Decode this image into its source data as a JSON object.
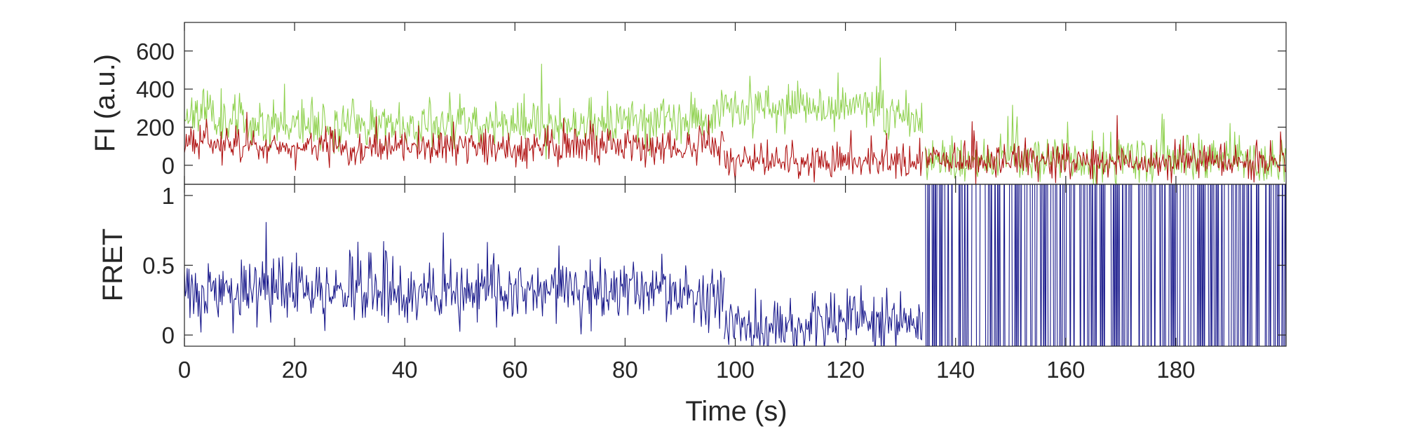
{
  "chart_data": [
    {
      "type": "line",
      "title": "",
      "xlabel": "",
      "ylabel": "FI (a.u.)",
      "xlim": [
        0,
        200
      ],
      "ylim": [
        -100,
        750
      ],
      "grid": false,
      "x_ticks": [
        0,
        20,
        40,
        60,
        80,
        100,
        120,
        140,
        160,
        180
      ],
      "y_ticks": [
        0,
        200,
        400,
        600
      ],
      "y_tick_labels": [
        "0",
        "200",
        "400",
        "600"
      ],
      "series": [
        {
          "color": "#8fd14f",
          "noise": 62,
          "segments": [
            {
              "x": [
                0,
                2,
                10,
                20,
                30,
                40,
                50,
                60,
                70,
                80,
                90,
                95,
                100,
                105,
                110,
                115,
                120,
                125,
                130,
                134
              ],
              "y": [
                260,
                300,
                230,
                220,
                215,
                215,
                230,
                215,
                220,
                225,
                240,
                260,
                300,
                330,
                300,
                290,
                320,
                300,
                260,
                240
              ]
            },
            {
              "x": [
                134.5,
                140,
                150,
                160,
                170,
                180,
                190,
                200
              ],
              "y": [
                20,
                30,
                30,
                25,
                20,
                25,
                20,
                15
              ]
            }
          ]
        },
        {
          "color": "#b01313",
          "noise": 45,
          "segments": [
            {
              "x": [
                0,
                10,
                20,
                40,
                60,
                80,
                90,
                98
              ],
              "y": [
                120,
                110,
                95,
                95,
                90,
                95,
                100,
                95
              ]
            },
            {
              "x": [
                98,
                105,
                110,
                120,
                130,
                134
              ],
              "y": [
                20,
                10,
                25,
                30,
                30,
                20
              ]
            },
            {
              "x": [
                134.5,
                150,
                170,
                190,
                200
              ],
              "y": [
                25,
                25,
                20,
                20,
                10
              ]
            }
          ]
        }
      ]
    },
    {
      "type": "line",
      "title": "",
      "xlabel": "Time (s)",
      "ylabel": "FRET",
      "xlim": [
        0,
        200
      ],
      "ylim": [
        -0.08,
        1.08
      ],
      "grid": false,
      "x_ticks": [
        0,
        20,
        40,
        60,
        80,
        100,
        120,
        140,
        160,
        180
      ],
      "x_tick_labels": [
        "0",
        "20",
        "40",
        "60",
        "80",
        "100",
        "120",
        "140",
        "160",
        "180"
      ],
      "y_ticks": [
        0,
        0.5,
        1
      ],
      "y_tick_labels": [
        "0",
        "0.5",
        "1"
      ],
      "series": [
        {
          "color": "#1a1a8c",
          "noise": 0.11,
          "segments": [
            {
              "x": [
                0,
                10,
                20,
                30,
                40,
                50,
                60,
                70,
                80,
                90,
                98
              ],
              "y": [
                0.3,
                0.32,
                0.3,
                0.32,
                0.28,
                0.32,
                0.3,
                0.3,
                0.32,
                0.3,
                0.32
              ]
            },
            {
              "x": [
                98,
                105,
                110,
                115,
                120,
                125,
                134
              ],
              "y": [
                0.1,
                0.08,
                0.05,
                0.12,
                0.1,
                0.1,
                0.1
              ]
            },
            {
              "x": [
                134.5,
                200
              ],
              "y": [
                0.5,
                0.5
              ],
              "mode": "saturated"
            }
          ]
        }
      ]
    }
  ]
}
